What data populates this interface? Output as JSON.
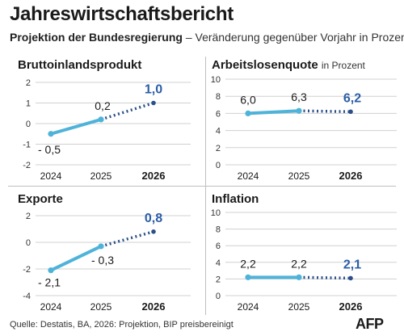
{
  "header": {
    "title": "Jahreswirtschaftsbericht",
    "subtitle_strong": "Projektion der Bundesregierung",
    "subtitle_rest": " – Veränderung gegenüber Vorjahr in Prozent"
  },
  "colors": {
    "actual_line": "#4fb3d9",
    "projection_line": "#2b4f8a",
    "projection_label": "#2b5ea7",
    "axis_text": "#333333",
    "grid": "#d0d0d0"
  },
  "chart_data": [
    {
      "type": "line",
      "title": "Bruttoinlandsprodukt",
      "unit": "",
      "x": [
        "2024",
        "2025",
        "2026"
      ],
      "values": [
        -0.5,
        0.2,
        1.0
      ],
      "labels": [
        "- 0,5",
        "0,2",
        "1,0"
      ],
      "projection_from_index": 1,
      "ylim": [
        -2,
        2
      ],
      "yticks": [
        -2,
        -1,
        0,
        1,
        2
      ],
      "ytick_labels": [
        "-2",
        "-1",
        "0",
        "1",
        "2"
      ],
      "bold_x_index": 2
    },
    {
      "type": "line",
      "title": "Arbeitslosenquote",
      "unit": "in Prozent",
      "x": [
        "2024",
        "2025",
        "2026"
      ],
      "values": [
        6.0,
        6.3,
        6.2
      ],
      "labels": [
        "6,0",
        "6,3",
        "6,2"
      ],
      "projection_from_index": 1,
      "ylim": [
        0,
        10
      ],
      "yticks": [
        0,
        2,
        4,
        6,
        8,
        10
      ],
      "ytick_labels": [
        "0",
        "2",
        "4",
        "6",
        "8",
        "10"
      ],
      "bold_x_index": 2
    },
    {
      "type": "line",
      "title": "Exporte",
      "unit": "",
      "x": [
        "2024",
        "2025",
        "2026"
      ],
      "values": [
        -2.1,
        -0.3,
        0.8
      ],
      "labels": [
        "- 2,1",
        "- 0,3",
        "0,8"
      ],
      "projection_from_index": 1,
      "ylim": [
        -4,
        2
      ],
      "yticks": [
        -4,
        -2,
        0,
        2
      ],
      "ytick_labels": [
        "-4",
        "-2",
        "0",
        "2"
      ],
      "bold_x_index": 2
    },
    {
      "type": "line",
      "title": "Inflation",
      "unit": "",
      "x": [
        "2024",
        "2025",
        "2026"
      ],
      "values": [
        2.2,
        2.2,
        2.1
      ],
      "labels": [
        "2,2",
        "2,2",
        "2,1"
      ],
      "projection_from_index": 1,
      "ylim": [
        0,
        10
      ],
      "yticks": [
        0,
        2,
        4,
        6,
        8,
        10
      ],
      "ytick_labels": [
        "0",
        "2",
        "4",
        "6",
        "8",
        "10"
      ],
      "bold_x_index": 2
    }
  ],
  "footer": {
    "source": "Quelle: Destatis, BA, 2026: Projektion, BIP preisbereinigt",
    "logo": "AFP"
  }
}
